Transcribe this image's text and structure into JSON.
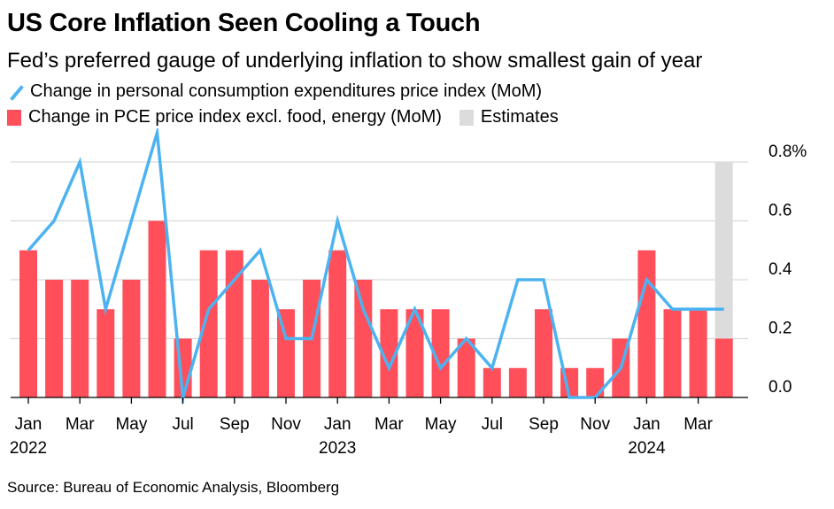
{
  "title": "US Core Inflation Seen Cooling a Touch",
  "subtitle": "Fed’s preferred gauge of underlying inflation to show smallest gain of year",
  "legend": {
    "line_label": "Change in personal consumption expenditures price index (MoM)",
    "bar_label": "Change in PCE price index excl. food, energy (MoM)",
    "estimates_label": "Estimates"
  },
  "source": "Source: Bureau of Economic Analysis, Bloomberg",
  "colors": {
    "line": "#4db3f0",
    "bar": "#ff4f5a",
    "estimate": "#dcdcdc",
    "grid": "#d9d9d9",
    "axis": "#000000"
  },
  "chart_data": {
    "type": "bar",
    "x": [
      "2022-01",
      "2022-02",
      "2022-03",
      "2022-04",
      "2022-05",
      "2022-06",
      "2022-07",
      "2022-08",
      "2022-09",
      "2022-10",
      "2022-11",
      "2022-12",
      "2023-01",
      "2023-02",
      "2023-03",
      "2023-04",
      "2023-05",
      "2023-06",
      "2023-07",
      "2023-08",
      "2023-09",
      "2023-10",
      "2023-11",
      "2023-12",
      "2024-01",
      "2024-02",
      "2024-03",
      "2024-04"
    ],
    "series": [
      {
        "name": "Change in PCE price index excl. food, energy (MoM)",
        "type": "bar",
        "values": [
          0.5,
          0.4,
          0.4,
          0.3,
          0.4,
          0.6,
          0.2,
          0.5,
          0.5,
          0.4,
          0.3,
          0.4,
          0.5,
          0.4,
          0.3,
          0.3,
          0.3,
          0.2,
          0.1,
          0.1,
          0.3,
          0.1,
          0.1,
          0.2,
          0.5,
          0.3,
          0.3,
          0.2
        ]
      },
      {
        "name": "Change in personal consumption expenditures price index (MoM)",
        "type": "line",
        "values": [
          0.5,
          0.6,
          0.8,
          0.3,
          0.6,
          0.9,
          0.0,
          0.3,
          0.4,
          0.5,
          0.2,
          0.2,
          0.6,
          0.3,
          0.1,
          0.3,
          0.1,
          0.2,
          0.1,
          0.4,
          0.4,
          0.0,
          0.0,
          0.1,
          0.4,
          0.3,
          0.3,
          0.3
        ]
      }
    ],
    "estimate_x": "2024-04",
    "estimate_range": [
      0,
      0.8
    ],
    "ylim": [
      0,
      0.8
    ],
    "y_ticks": [
      "0.0",
      "0.2",
      "0.4",
      "0.6",
      "0.8%"
    ],
    "x_tick_labels": [
      {
        "x": "2022-01",
        "label": "Jan",
        "year": "2022"
      },
      {
        "x": "2022-03",
        "label": "Mar"
      },
      {
        "x": "2022-05",
        "label": "May"
      },
      {
        "x": "2022-07",
        "label": "Jul"
      },
      {
        "x": "2022-09",
        "label": "Sep"
      },
      {
        "x": "2022-11",
        "label": "Nov"
      },
      {
        "x": "2023-01",
        "label": "Jan",
        "year": "2023"
      },
      {
        "x": "2023-03",
        "label": "Mar"
      },
      {
        "x": "2023-05",
        "label": "May"
      },
      {
        "x": "2023-07",
        "label": "Jul"
      },
      {
        "x": "2023-09",
        "label": "Sep"
      },
      {
        "x": "2023-11",
        "label": "Nov"
      },
      {
        "x": "2024-01",
        "label": "Jan",
        "year": "2024"
      },
      {
        "x": "2024-03",
        "label": "Mar"
      }
    ],
    "y_axis_side": "right",
    "grid": true,
    "legend_position": "top-left"
  }
}
